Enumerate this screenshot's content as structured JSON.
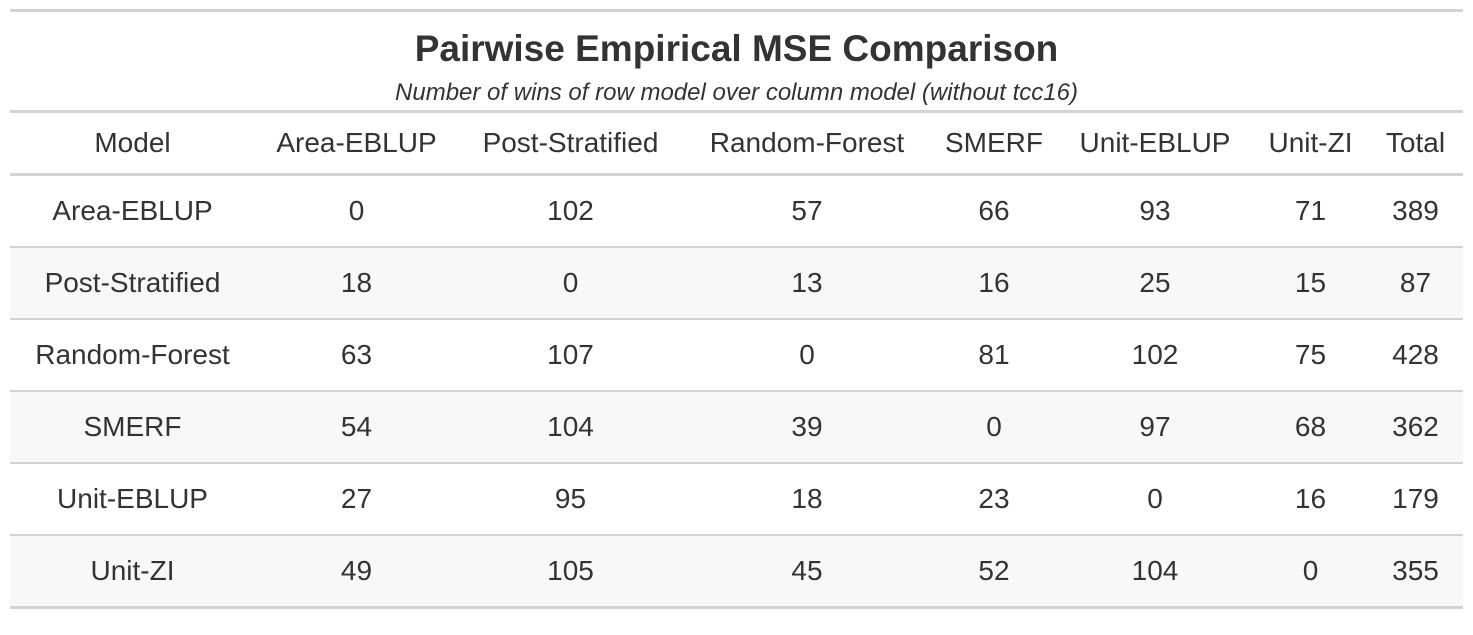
{
  "chart_data": {
    "type": "table",
    "title": "Pairwise Empirical MSE Comparison",
    "subtitle": "Number of wins of row model over column model (without tcc16)",
    "columns": [
      "Model",
      "Area-EBLUP",
      "Post-Stratified",
      "Random-Forest",
      "SMERF",
      "Unit-EBLUP",
      "Unit-ZI",
      "Total"
    ],
    "rows": [
      {
        "model": "Area-EBLUP",
        "values": [
          "0",
          "102",
          "57",
          "66",
          "93",
          "71",
          "389"
        ]
      },
      {
        "model": "Post-Stratified",
        "values": [
          "18",
          "0",
          "13",
          "16",
          "25",
          "15",
          "87"
        ]
      },
      {
        "model": "Random-Forest",
        "values": [
          "63",
          "107",
          "0",
          "81",
          "102",
          "75",
          "428"
        ]
      },
      {
        "model": "SMERF",
        "values": [
          "54",
          "104",
          "39",
          "0",
          "97",
          "68",
          "362"
        ]
      },
      {
        "model": "Unit-EBLUP",
        "values": [
          "27",
          "95",
          "18",
          "23",
          "0",
          "16",
          "179"
        ]
      },
      {
        "model": "Unit-ZI",
        "values": [
          "49",
          "105",
          "45",
          "52",
          "104",
          "0",
          "355"
        ]
      }
    ]
  }
}
